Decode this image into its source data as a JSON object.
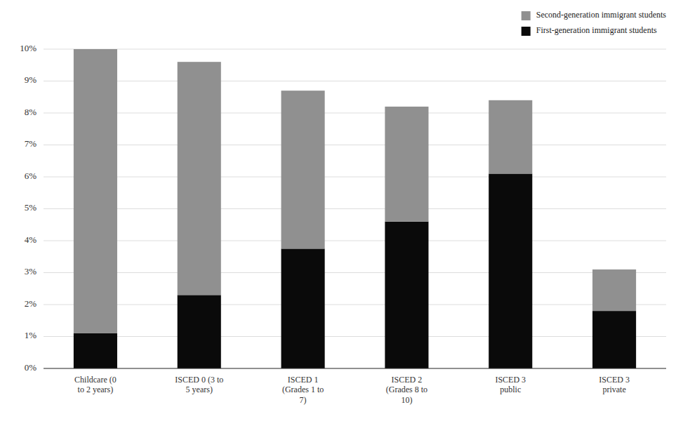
{
  "chart_data": {
    "type": "bar",
    "stacked": true,
    "categories": [
      "Childcare (0\nto 2 years)",
      "ISCED 0 (3 to\n5 years)",
      "ISCED 1\n(Grades 1 to\n7)",
      "ISCED 2\n(Grades 8 to\n10)",
      "ISCED 3\npublic",
      "ISCED 3\nprivate"
    ],
    "series": [
      {
        "name": "First-generation immigrant students",
        "color": "#0a0a0a",
        "values": [
          1.1,
          2.3,
          3.75,
          4.6,
          6.1,
          1.8
        ]
      },
      {
        "name": "Second-generation immigrant students",
        "color": "#909090",
        "values": [
          8.9,
          7.3,
          4.95,
          3.6,
          2.3,
          1.3
        ]
      }
    ],
    "ylim": [
      0,
      10.0
    ],
    "yticks": [
      {
        "value": 0,
        "label": "0%"
      },
      {
        "value": 1,
        "label": "1%"
      },
      {
        "value": 2,
        "label": "2%"
      },
      {
        "value": 3,
        "label": "3%"
      },
      {
        "value": 4,
        "label": "4%"
      },
      {
        "value": 5,
        "label": "5%"
      },
      {
        "value": 6,
        "label": "6%"
      },
      {
        "value": 7,
        "label": "7%"
      },
      {
        "value": 8,
        "label": "8%"
      },
      {
        "value": 9,
        "label": "9%"
      },
      {
        "value": 10,
        "label": "10%"
      }
    ],
    "grid": true,
    "legend": "upper right"
  }
}
